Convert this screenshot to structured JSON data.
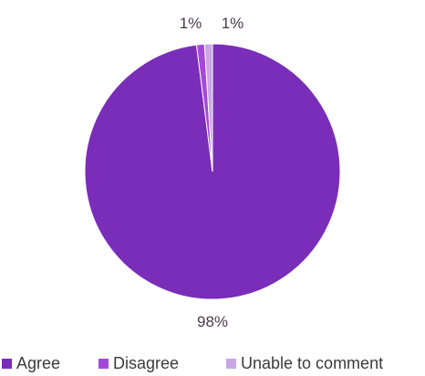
{
  "chart_data": {
    "type": "pie",
    "title": "",
    "categories": [
      "Agree",
      "Disagree",
      "Unable to comment"
    ],
    "values": [
      98,
      1,
      1
    ],
    "data_labels": [
      "98%",
      "1%",
      "1%"
    ],
    "colors": [
      "#7a2db8",
      "#a647db",
      "#c9a6e6"
    ],
    "legend": {
      "position": "bottom",
      "entries": [
        "Agree",
        "Disagree",
        "Unable to comment"
      ]
    }
  }
}
